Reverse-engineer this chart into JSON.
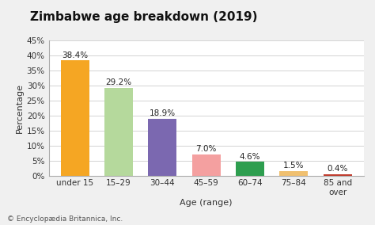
{
  "title": "Zimbabwe age breakdown (2019)",
  "categories": [
    "under 15",
    "15–29",
    "30–44",
    "45–59",
    "60–74",
    "75–84",
    "85 and\nover"
  ],
  "values": [
    38.4,
    29.2,
    18.9,
    7.0,
    4.6,
    1.5,
    0.4
  ],
  "bar_colors": [
    "#F5A623",
    "#B5D99C",
    "#7B68B0",
    "#F4A0A0",
    "#2E9E4F",
    "#F0C070",
    "#C0392B"
  ],
  "xlabel": "Age (range)",
  "ylabel": "Percentage",
  "ylim": [
    0,
    45
  ],
  "yticks": [
    0,
    5,
    10,
    15,
    20,
    25,
    30,
    35,
    40,
    45
  ],
  "footnote": "© Encyclopædia Britannica, Inc.",
  "title_fontsize": 11,
  "label_fontsize": 7.5,
  "axis_fontsize": 8,
  "tick_fontsize": 7.5,
  "footnote_fontsize": 6.5,
  "background_color": "#f0f0f0",
  "plot_bg_color": "#ffffff"
}
